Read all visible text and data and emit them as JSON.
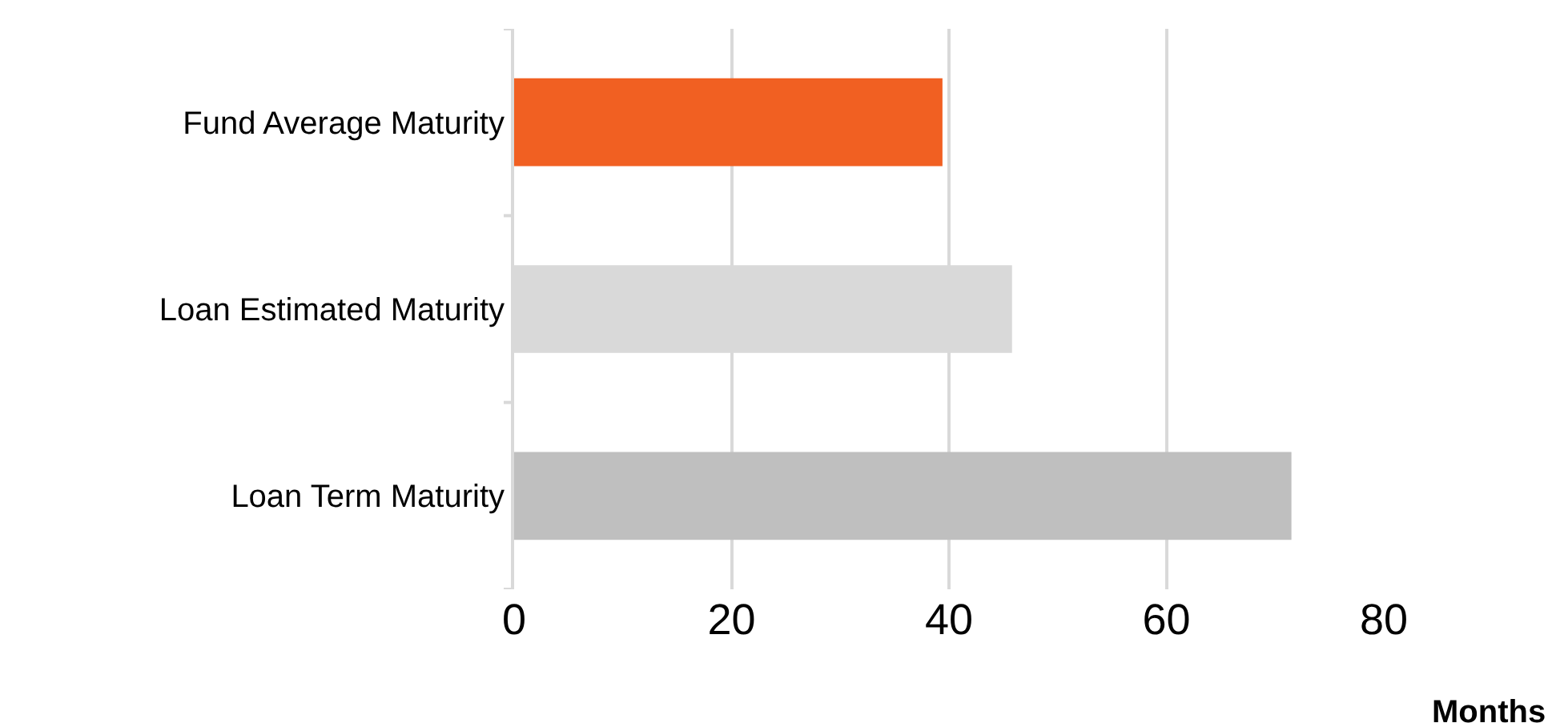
{
  "chart_data": {
    "type": "bar",
    "orientation": "horizontal",
    "xlabel": "Months",
    "categories": [
      "Fund Average Maturity",
      "Loan Estimated Maturity",
      "Loan Term Maturity"
    ],
    "values": [
      39.4,
      45.8,
      71.5
    ],
    "colors": [
      "#f16022",
      "#d9d9d9",
      "#bfbfbf"
    ],
    "xlim": [
      0,
      80
    ],
    "xticks": [
      0,
      20,
      40,
      60,
      80
    ],
    "grid": "x"
  }
}
